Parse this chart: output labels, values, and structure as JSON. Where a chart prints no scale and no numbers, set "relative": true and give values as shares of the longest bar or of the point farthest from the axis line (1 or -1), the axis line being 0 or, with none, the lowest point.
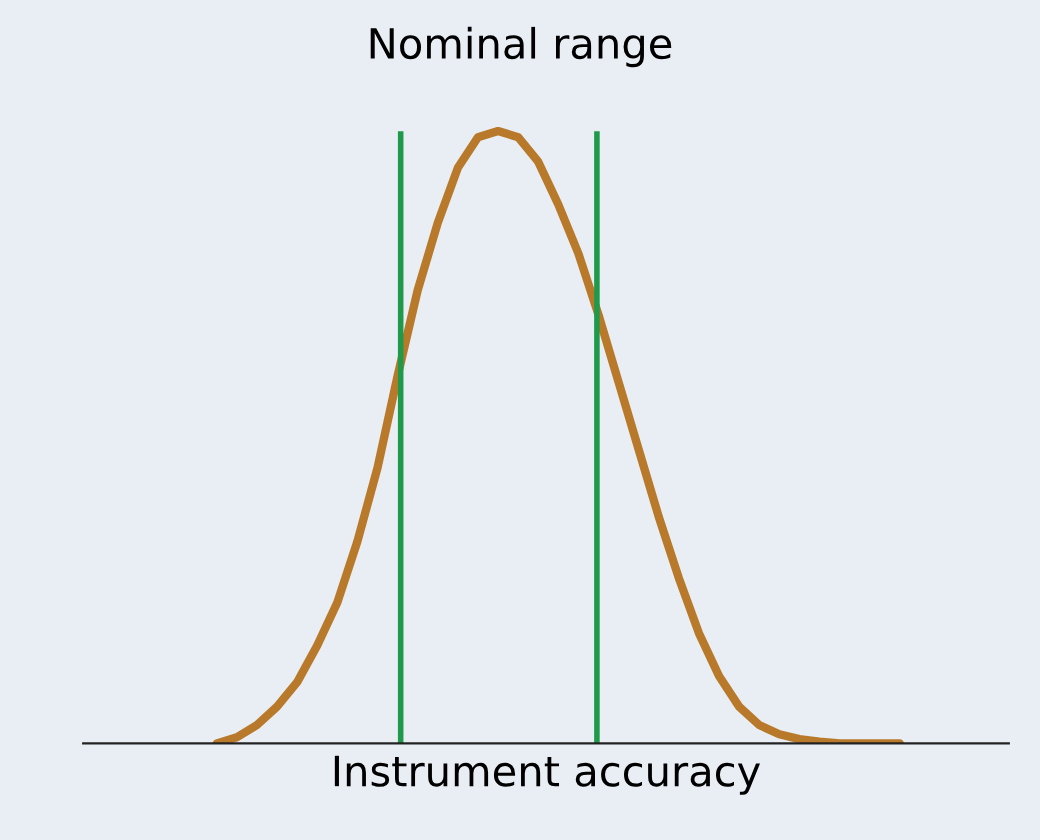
{
  "chart_data": {
    "type": "line",
    "relative": true,
    "xlabel": "Instrument accuracy",
    "annotations": [
      "Nominal range"
    ],
    "categories": [
      null,
      null,
      null,
      null,
      null,
      null,
      null,
      null,
      null,
      null,
      null,
      null,
      null,
      null,
      null,
      null,
      null,
      null,
      null,
      null,
      null,
      null,
      null,
      null,
      null,
      null,
      null,
      null,
      null,
      null,
      null,
      null,
      null,
      null,
      null
    ],
    "series": [
      {
        "color": "#b87a2a",
        "values": [
          0,
          0.01,
          0.03,
          0.06,
          0.1,
          0.16,
          0.23,
          0.33,
          0.45,
          0.6,
          0.74,
          0.85,
          0.94,
          0.99,
          1.0,
          0.99,
          0.95,
          0.88,
          0.8,
          0.7,
          0.59,
          0.48,
          0.37,
          0.27,
          0.18,
          0.11,
          0.06,
          0.03,
          0.015,
          0.007,
          0.003,
          0,
          0,
          0,
          0
        ]
      }
    ],
    "legend": false,
    "marker": "none",
    "line_style": "solid"
  }
}
